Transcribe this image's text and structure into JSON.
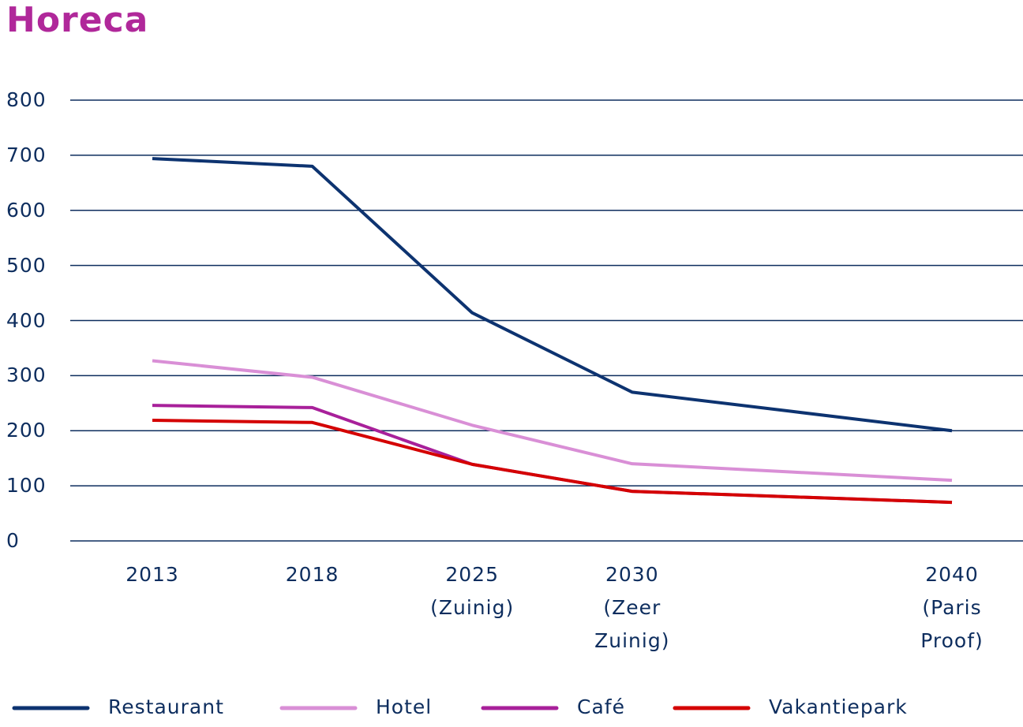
{
  "chart_data": {
    "type": "line",
    "title": "Horeca",
    "categories": [
      "2013",
      "2018",
      "2025 (Zuinig)",
      "2030 (Zeer Zuinig)",
      null,
      "2040 (Paris Proof)"
    ],
    "series": [
      {
        "name": "Restaurant",
        "color": "#0d3370",
        "values": [
          694,
          680,
          414,
          270,
          235,
          200
        ]
      },
      {
        "name": "Hotel",
        "color": "#d98fd6",
        "values": [
          327,
          297,
          210,
          140,
          125,
          110
        ]
      },
      {
        "name": "Café",
        "color": "#a8209a",
        "values": [
          246,
          242,
          139,
          90,
          80,
          70
        ]
      },
      {
        "name": "Vakantiepark",
        "color": "#d40000",
        "values": [
          219,
          215,
          139,
          90,
          80,
          70
        ]
      }
    ],
    "ylim": [
      0,
      800
    ],
    "yticks": [
      0,
      100,
      200,
      300,
      400,
      500,
      600,
      700,
      800
    ],
    "grid": true,
    "legend": "bottom"
  }
}
